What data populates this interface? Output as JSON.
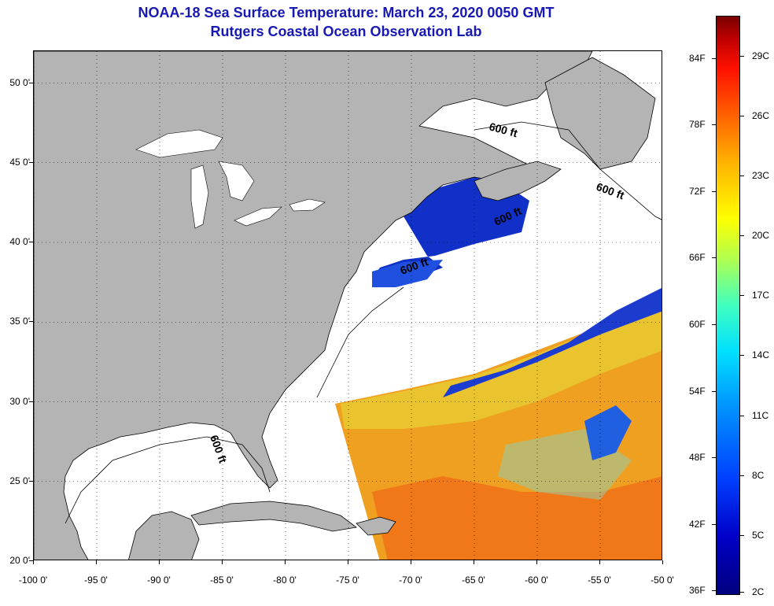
{
  "title": {
    "line1": "NOAA-18 Sea Surface Temperature:  March 23, 2020 0050 GMT",
    "line2": "Rutgers Coastal Ocean Observation Lab"
  },
  "colors": {
    "title": "#1818b4",
    "land": "#b4b4b4",
    "cloud": "#ffffff",
    "cold_water": "#1028c8",
    "warm_water": "#f0a020"
  },
  "map": {
    "lon_range": [
      -100,
      -50
    ],
    "lat_range": [
      20,
      52
    ],
    "lat_labels": [
      "50 0'",
      "45 0'",
      "40 0'",
      "35 0'",
      "30 0'",
      "25 0'",
      "20 0'"
    ],
    "lat_values": [
      50,
      45,
      40,
      35,
      30,
      25,
      20
    ],
    "lon_labels": [
      "-100 0'",
      "-95 0'",
      "-90 0'",
      "-85 0'",
      "-80 0'",
      "-75 0'",
      "-70 0'",
      "-65 0'",
      "-60 0'",
      "-55 0'",
      "-50 0'"
    ],
    "lon_values": [
      -100,
      -95,
      -90,
      -85,
      -80,
      -75,
      -70,
      -65,
      -60,
      -55,
      -50
    ],
    "contour_labels": [
      "600 ft",
      "600 ft",
      "600 ft",
      "600 ft",
      "600 ft"
    ]
  },
  "colorbar": {
    "fahrenheit_labels": [
      "84F",
      "78F",
      "72F",
      "66F",
      "60F",
      "54F",
      "48F",
      "42F",
      "36F"
    ],
    "fahrenheit_values": [
      84,
      78,
      72,
      66,
      60,
      54,
      48,
      42,
      36
    ],
    "celsius_labels": [
      "29C",
      "26C",
      "23C",
      "20C",
      "17C",
      "14C",
      "11C",
      "8C",
      "5C",
      "2C"
    ],
    "celsius_values": [
      29,
      26,
      23,
      20,
      17,
      14,
      11,
      8,
      5,
      2
    ]
  }
}
